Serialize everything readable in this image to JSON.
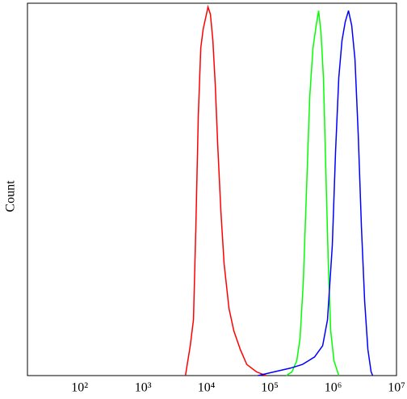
{
  "chart_data": {
    "type": "line",
    "y_label": "Count",
    "x_scale": "log",
    "xlim": [
      15,
      10000000
    ],
    "ylim": [
      0,
      100
    ],
    "xticks": [
      {
        "value": 100,
        "label": "10²"
      },
      {
        "value": 1000,
        "label": "10³"
      },
      {
        "value": 10000,
        "label": "10⁴"
      },
      {
        "value": 100000,
        "label": "10⁵"
      },
      {
        "value": 1000000,
        "label": "10⁶"
      },
      {
        "value": 10000000,
        "label": "10⁷"
      }
    ],
    "series": [
      {
        "color": "#ff0000",
        "x": [
          4670,
          5560,
          6250,
          6820,
          7460,
          8150,
          8890,
          9710,
          10600,
          11580,
          12650,
          13810,
          15080,
          16940,
          19040,
          22730,
          27100,
          34280,
          43350,
          61660,
          87700
        ],
        "values": [
          0,
          8,
          15,
          40,
          70,
          88,
          93,
          96,
          99,
          97,
          90,
          78,
          62,
          44,
          30,
          18,
          12,
          7,
          3,
          1,
          0
        ]
      },
      {
        "color": "#00ff00",
        "x": [
          182400,
          224000,
          267000,
          300400,
          338000,
          380400,
          427800,
          481000,
          540000,
          590000,
          644000,
          703000,
          767500,
          839000,
          916000,
          1030000,
          1228000
        ],
        "values": [
          0,
          1,
          4,
          10,
          25,
          50,
          75,
          88,
          94,
          98,
          92,
          80,
          55,
          30,
          12,
          4,
          0
        ]
      },
      {
        "color": "#0000ff",
        "x": [
          65300,
          117500,
          211400,
          328000,
          509500,
          682900,
          814700,
          970800,
          1091000,
          1228000,
          1381000,
          1553000,
          1747000,
          1965000,
          2210000,
          2486000,
          2795000,
          3143000,
          3535000,
          3975000,
          4210000
        ],
        "values": [
          0,
          1,
          2,
          3,
          5,
          8,
          15,
          35,
          60,
          80,
          90,
          95,
          98,
          94,
          85,
          65,
          40,
          20,
          7,
          1,
          0
        ]
      }
    ]
  }
}
